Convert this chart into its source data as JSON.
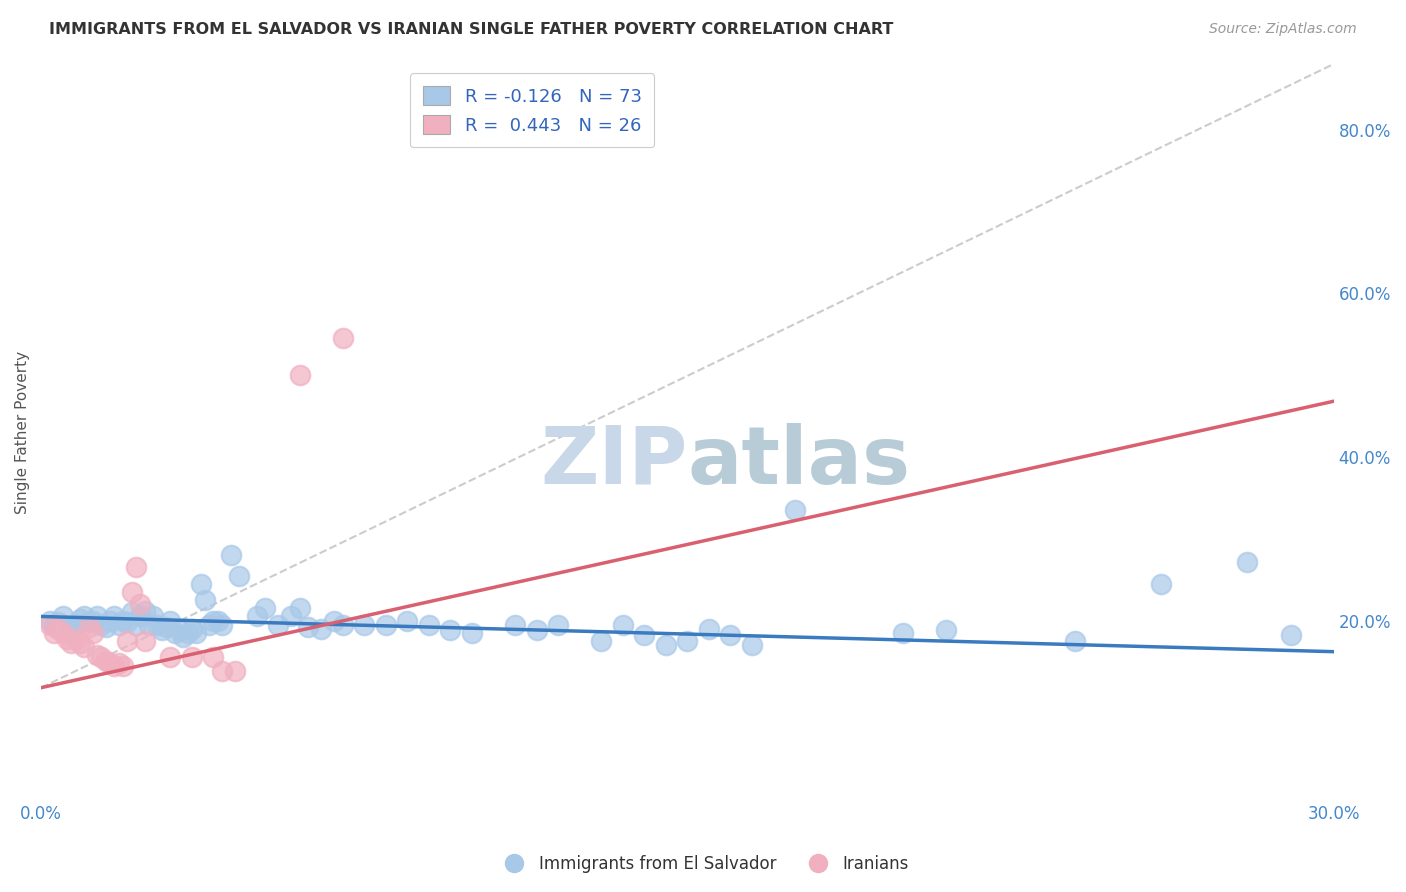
{
  "title": "IMMIGRANTS FROM EL SALVADOR VS IRANIAN SINGLE FATHER POVERTY CORRELATION CHART",
  "source": "Source: ZipAtlas.com",
  "ylabel": "Single Father Poverty",
  "right_yticks": [
    "80.0%",
    "60.0%",
    "40.0%",
    "20.0%"
  ],
  "right_ytick_vals": [
    0.8,
    0.6,
    0.4,
    0.2
  ],
  "xlim": [
    0.0,
    0.3
  ],
  "ylim": [
    -0.02,
    0.88
  ],
  "color_blue": "#a8c8e8",
  "color_pink": "#f0b0c0",
  "trendline_blue": "#3a7abf",
  "trendline_pink": "#d96070",
  "trendline_dashed": "#cccccc",
  "watermark_color": "#c8d8e8",
  "blue_scatter": [
    [
      0.002,
      0.2
    ],
    [
      0.003,
      0.195
    ],
    [
      0.004,
      0.198
    ],
    [
      0.005,
      0.205
    ],
    [
      0.006,
      0.192
    ],
    [
      0.007,
      0.188
    ],
    [
      0.008,
      0.195
    ],
    [
      0.009,
      0.202
    ],
    [
      0.01,
      0.205
    ],
    [
      0.011,
      0.198
    ],
    [
      0.012,
      0.2
    ],
    [
      0.013,
      0.205
    ],
    [
      0.014,
      0.195
    ],
    [
      0.015,
      0.192
    ],
    [
      0.016,
      0.2
    ],
    [
      0.017,
      0.205
    ],
    [
      0.018,
      0.195
    ],
    [
      0.019,
      0.2
    ],
    [
      0.02,
      0.198
    ],
    [
      0.021,
      0.21
    ],
    [
      0.022,
      0.195
    ],
    [
      0.023,
      0.205
    ],
    [
      0.024,
      0.212
    ],
    [
      0.025,
      0.195
    ],
    [
      0.026,
      0.205
    ],
    [
      0.027,
      0.195
    ],
    [
      0.028,
      0.188
    ],
    [
      0.029,
      0.192
    ],
    [
      0.03,
      0.2
    ],
    [
      0.031,
      0.185
    ],
    [
      0.032,
      0.188
    ],
    [
      0.033,
      0.18
    ],
    [
      0.034,
      0.185
    ],
    [
      0.035,
      0.19
    ],
    [
      0.036,
      0.185
    ],
    [
      0.037,
      0.245
    ],
    [
      0.038,
      0.225
    ],
    [
      0.039,
      0.195
    ],
    [
      0.04,
      0.2
    ],
    [
      0.041,
      0.2
    ],
    [
      0.042,
      0.195
    ],
    [
      0.044,
      0.28
    ],
    [
      0.046,
      0.255
    ],
    [
      0.05,
      0.205
    ],
    [
      0.052,
      0.215
    ],
    [
      0.055,
      0.195
    ],
    [
      0.058,
      0.205
    ],
    [
      0.06,
      0.215
    ],
    [
      0.062,
      0.192
    ],
    [
      0.065,
      0.19
    ],
    [
      0.068,
      0.2
    ],
    [
      0.07,
      0.195
    ],
    [
      0.075,
      0.195
    ],
    [
      0.08,
      0.195
    ],
    [
      0.085,
      0.2
    ],
    [
      0.09,
      0.195
    ],
    [
      0.095,
      0.188
    ],
    [
      0.1,
      0.185
    ],
    [
      0.11,
      0.195
    ],
    [
      0.115,
      0.188
    ],
    [
      0.12,
      0.195
    ],
    [
      0.13,
      0.175
    ],
    [
      0.135,
      0.195
    ],
    [
      0.14,
      0.182
    ],
    [
      0.145,
      0.17
    ],
    [
      0.15,
      0.175
    ],
    [
      0.155,
      0.19
    ],
    [
      0.16,
      0.182
    ],
    [
      0.165,
      0.17
    ],
    [
      0.175,
      0.335
    ],
    [
      0.2,
      0.185
    ],
    [
      0.21,
      0.188
    ],
    [
      0.24,
      0.175
    ],
    [
      0.26,
      0.245
    ],
    [
      0.28,
      0.272
    ],
    [
      0.29,
      0.182
    ]
  ],
  "pink_scatter": [
    [
      0.002,
      0.195
    ],
    [
      0.003,
      0.185
    ],
    [
      0.004,
      0.19
    ],
    [
      0.005,
      0.185
    ],
    [
      0.006,
      0.178
    ],
    [
      0.007,
      0.172
    ],
    [
      0.008,
      0.178
    ],
    [
      0.009,
      0.172
    ],
    [
      0.01,
      0.168
    ],
    [
      0.011,
      0.192
    ],
    [
      0.012,
      0.185
    ],
    [
      0.013,
      0.158
    ],
    [
      0.014,
      0.155
    ],
    [
      0.015,
      0.15
    ],
    [
      0.016,
      0.148
    ],
    [
      0.017,
      0.145
    ],
    [
      0.018,
      0.148
    ],
    [
      0.019,
      0.145
    ],
    [
      0.02,
      0.175
    ],
    [
      0.021,
      0.235
    ],
    [
      0.022,
      0.265
    ],
    [
      0.023,
      0.22
    ],
    [
      0.024,
      0.175
    ],
    [
      0.03,
      0.155
    ],
    [
      0.035,
      0.155
    ],
    [
      0.04,
      0.155
    ],
    [
      0.042,
      0.138
    ],
    [
      0.045,
      0.138
    ],
    [
      0.06,
      0.5
    ],
    [
      0.07,
      0.545
    ]
  ],
  "blue_trend_x": [
    0.0,
    0.3
  ],
  "blue_trend_y": [
    0.205,
    0.162
  ],
  "pink_trend_x": [
    0.0,
    0.3
  ],
  "pink_trend_y": [
    0.118,
    0.468
  ],
  "diag_line_x": [
    0.0,
    0.3
  ],
  "diag_line_y": [
    0.118,
    0.88
  ]
}
